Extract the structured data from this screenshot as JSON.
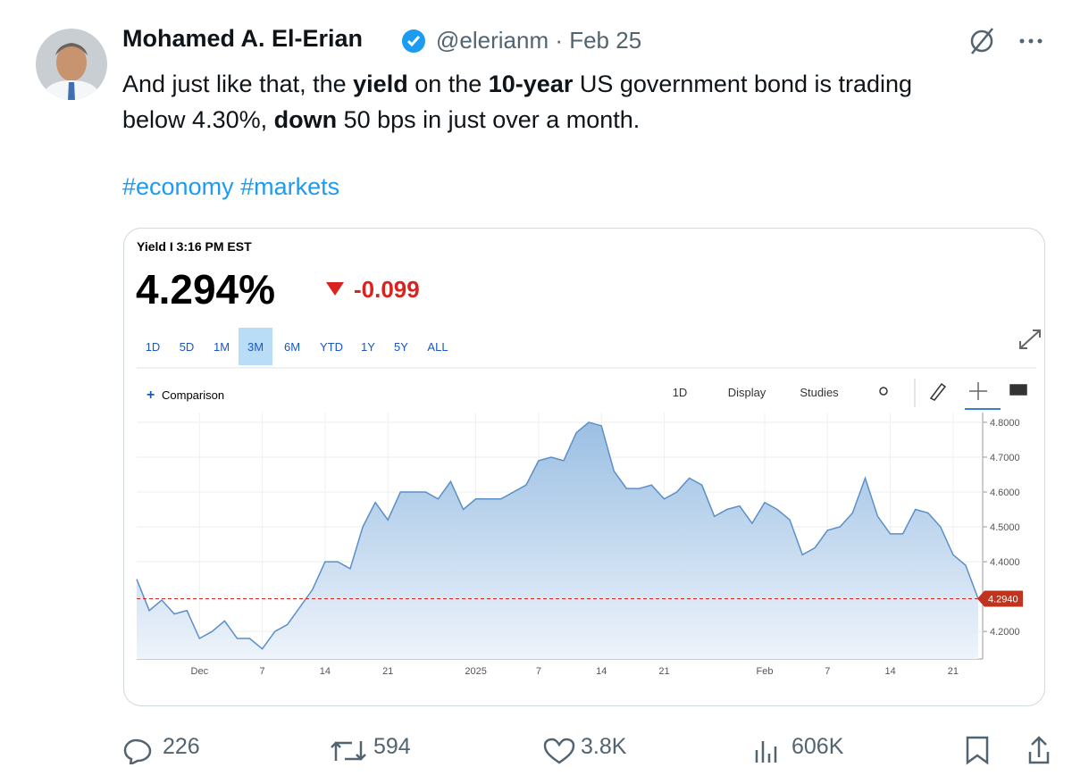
{
  "author": {
    "name": "Mohamed A. El-Erian",
    "meta": "@elerianm · Feb 25"
  },
  "tweet": {
    "lines": [
      [
        {
          "text": "And just like that, the ",
          "bold": false
        },
        {
          "text": "yield",
          "bold": true
        },
        {
          "text": " on the ",
          "bold": false
        },
        {
          "text": "10-year",
          "bold": true
        },
        {
          "text": " US government bond is trading",
          "bold": false
        }
      ],
      [
        {
          "text": "below 4.30%, ",
          "bold": false
        },
        {
          "text": "down",
          "bold": true
        },
        {
          "text": " 50 bps in just over a month.",
          "bold": false
        }
      ]
    ],
    "hashtags": "#economy #markets"
  },
  "quote": {
    "caption": "Yield I 3:16 PM EST",
    "price": "4.294%",
    "change": "-0.099",
    "ranges": [
      "1D",
      "5D",
      "1M",
      "3M",
      "6M",
      "YTD",
      "1Y",
      "5Y",
      "ALL"
    ],
    "active_range": "3M",
    "comparison": "Comparison",
    "toolbar": [
      "1D",
      "Display",
      "Studies"
    ]
  },
  "chart_data": {
    "type": "line",
    "color": "#5b8fc7",
    "values": [
      4.35,
      4.26,
      4.29,
      4.25,
      4.26,
      4.18,
      4.2,
      4.23,
      4.18,
      4.18,
      4.15,
      4.2,
      4.22,
      4.27,
      4.32,
      4.4,
      4.4,
      4.38,
      4.5,
      4.57,
      4.52,
      4.6,
      4.6,
      4.6,
      4.58,
      4.63,
      4.55,
      4.58,
      4.58,
      4.58,
      4.6,
      4.62,
      4.69,
      4.7,
      4.69,
      4.77,
      4.8,
      4.79,
      4.66,
      4.61,
      4.61,
      4.62,
      4.58,
      4.6,
      4.64,
      4.62,
      4.53,
      4.55,
      4.56,
      4.51,
      4.57,
      4.55,
      4.52,
      4.42,
      4.44,
      4.49,
      4.5,
      4.54,
      4.64,
      4.53,
      4.48,
      4.48,
      4.55,
      4.54,
      4.5,
      4.42,
      4.39,
      4.294
    ],
    "xticks": [
      {
        "value": 5,
        "label": "Dec"
      },
      {
        "value": 10,
        "label": "7"
      },
      {
        "value": 15,
        "label": "14"
      },
      {
        "value": 20,
        "label": "21"
      },
      {
        "value": 27,
        "label": "2025"
      },
      {
        "value": 32,
        "label": "7"
      },
      {
        "value": 37,
        "label": "14"
      },
      {
        "value": 42,
        "label": "21"
      },
      {
        "value": 50,
        "label": "Feb"
      },
      {
        "value": 55,
        "label": "7"
      },
      {
        "value": 60,
        "label": "14"
      },
      {
        "value": 65,
        "label": "21"
      }
    ],
    "ylim": [
      4.121,
      4.828
    ],
    "yticks": [
      {
        "value": 4.2,
        "label": "4.2000"
      },
      {
        "value": 4.4,
        "label": "4.4000"
      },
      {
        "value": 4.5,
        "label": "4.5000"
      },
      {
        "value": 4.6,
        "label": "4.6000"
      },
      {
        "value": 4.7,
        "label": "4.7000"
      },
      {
        "value": 4.8,
        "label": "4.8000"
      }
    ],
    "current": {
      "value": 4.294,
      "label": "4.2940"
    }
  },
  "actions": {
    "replies": "226",
    "reposts": "594",
    "likes": "3.8K",
    "views": "606K"
  }
}
